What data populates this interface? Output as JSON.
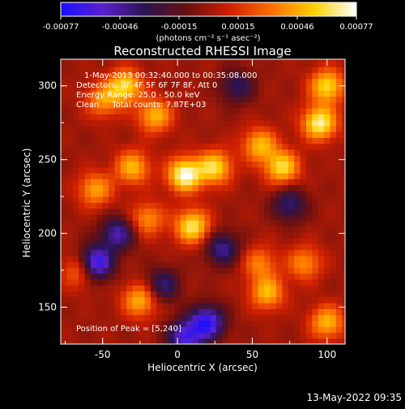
{
  "chart_data": {
    "type": "heatmap",
    "title": "Reconstructed RHESSI Image",
    "xlabel": "Heliocentric X (arcsec)",
    "ylabel": "Heliocentric Y (arcsec)",
    "xlim": [
      -78,
      112
    ],
    "ylim": [
      125,
      318
    ],
    "x_ticks": [
      -50,
      0,
      50,
      100
    ],
    "y_ticks": [
      150,
      200,
      250,
      300
    ],
    "colorbar": {
      "min": -0.00077,
      "max": 0.00077,
      "ticks": [
        "-0.00077",
        "-0.00046",
        "-0.00015",
        "0.00015",
        "0.00046",
        "0.00077"
      ],
      "unit_label": "(photons cm⁻² s⁻¹ asec⁻²)",
      "colors": [
        "#1a10ff",
        "#5a20d0",
        "#2a1450",
        "#6a1010",
        "#d02000",
        "#ff7000",
        "#ffd000",
        "#ffffff"
      ]
    },
    "info_lines": [
      "1-May-2013 00:32:40.000 to 00:35:08.000",
      "Detectors: 3F 4F 5F 6F 7F 8F, Att 0",
      "Energy Range: 25.0 - 50.0 keV",
      "Clean     Total counts: 7.87E+03"
    ],
    "peak_label": "Position of Peak = [5,240]",
    "peak_position": [
      5,
      240
    ],
    "hot_spots": [
      {
        "x": -35,
        "y": 300,
        "v": 0.0006
      },
      {
        "x": -15,
        "y": 280,
        "v": 0.0005
      },
      {
        "x": 5,
        "y": 240,
        "v": 0.00077
      },
      {
        "x": 25,
        "y": 245,
        "v": 0.0006
      },
      {
        "x": -30,
        "y": 245,
        "v": 0.0005
      },
      {
        "x": -55,
        "y": 230,
        "v": 0.00045
      },
      {
        "x": 55,
        "y": 260,
        "v": 0.0005
      },
      {
        "x": 70,
        "y": 245,
        "v": 0.0006
      },
      {
        "x": 95,
        "y": 275,
        "v": 0.0007
      },
      {
        "x": 100,
        "y": 300,
        "v": 0.0006
      },
      {
        "x": 10,
        "y": 205,
        "v": 0.00065
      },
      {
        "x": -20,
        "y": 210,
        "v": 0.0004
      },
      {
        "x": 55,
        "y": 180,
        "v": 0.00035
      },
      {
        "x": 60,
        "y": 160,
        "v": 0.0005
      },
      {
        "x": 85,
        "y": 180,
        "v": 0.0004
      },
      {
        "x": -25,
        "y": 155,
        "v": 0.0005
      },
      {
        "x": -65,
        "y": 175,
        "v": 0.0004
      },
      {
        "x": 100,
        "y": 140,
        "v": 0.0005
      },
      {
        "x": -50,
        "y": 290,
        "v": 0.0004
      }
    ],
    "cold_spots": [
      {
        "x": -55,
        "y": 180,
        "v": -0.00077
      },
      {
        "x": 20,
        "y": 140,
        "v": -0.0007
      },
      {
        "x": 5,
        "y": 130,
        "v": -0.0006
      },
      {
        "x": -40,
        "y": 200,
        "v": -0.0005
      },
      {
        "x": 30,
        "y": 190,
        "v": -0.00045
      },
      {
        "x": 75,
        "y": 220,
        "v": -0.0004
      },
      {
        "x": -10,
        "y": 165,
        "v": -0.0004
      },
      {
        "x": 40,
        "y": 300,
        "v": -0.00035
      }
    ]
  },
  "footer": {
    "timestamp": "13-May-2022 09:35"
  }
}
